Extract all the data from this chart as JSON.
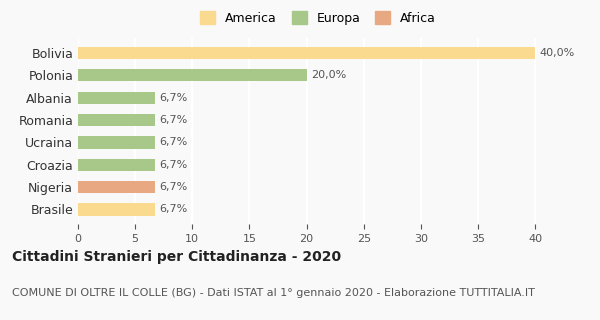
{
  "countries": [
    "Brasile",
    "Nigeria",
    "Croazia",
    "Ucraina",
    "Romania",
    "Albania",
    "Polonia",
    "Bolivia"
  ],
  "values": [
    6.7,
    6.7,
    6.7,
    6.7,
    6.7,
    6.7,
    20.0,
    40.0
  ],
  "labels": [
    "6,7%",
    "6,7%",
    "6,7%",
    "6,7%",
    "6,7%",
    "6,7%",
    "20,0%",
    "40,0%"
  ],
  "colors": [
    "#FADA8E",
    "#E8A882",
    "#A8C88A",
    "#A8C88A",
    "#A8C88A",
    "#A8C88A",
    "#A8C88A",
    "#FADA8E"
  ],
  "legend_labels": [
    "America",
    "Europa",
    "Africa"
  ],
  "legend_colors": [
    "#FADA8E",
    "#A8C88A",
    "#E8A882"
  ],
  "title": "Cittadini Stranieri per Cittadinanza - 2020",
  "subtitle": "COMUNE DI OLTRE IL COLLE (BG) - Dati ISTAT al 1° gennaio 2020 - Elaborazione TUTTITALIA.IT",
  "xlim": [
    0,
    42
  ],
  "xticks": [
    0,
    5,
    10,
    15,
    20,
    25,
    30,
    35,
    40
  ],
  "bg_color": "#f9f9f9",
  "grid_color": "#ffffff",
  "label_fontsize": 8,
  "title_fontsize": 10,
  "subtitle_fontsize": 8
}
